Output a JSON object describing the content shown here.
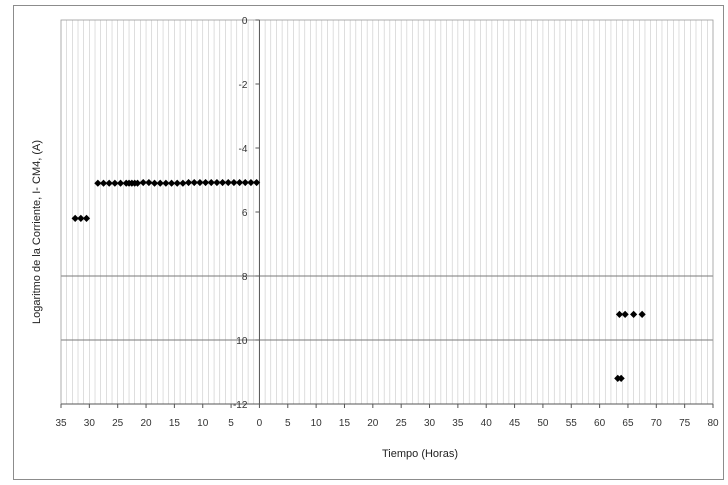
{
  "chart_data": {
    "type": "scatter",
    "title": "",
    "xlabel": "Tiempo (Horas)",
    "ylabel": "Logaritmo de la Corriente, I- CM4, (A)",
    "x_ticks": [
      {
        "value": -35,
        "label": "35"
      },
      {
        "value": -30,
        "label": "30"
      },
      {
        "value": -25,
        "label": "25"
      },
      {
        "value": -20,
        "label": "20"
      },
      {
        "value": -15,
        "label": "15"
      },
      {
        "value": -10,
        "label": "10"
      },
      {
        "value": -5,
        "label": "5"
      },
      {
        "value": 0,
        "label": "0"
      },
      {
        "value": 5,
        "label": "5"
      },
      {
        "value": 10,
        "label": "10"
      },
      {
        "value": 15,
        "label": "15"
      },
      {
        "value": 20,
        "label": "20"
      },
      {
        "value": 25,
        "label": "25"
      },
      {
        "value": 30,
        "label": "30"
      },
      {
        "value": 35,
        "label": "35"
      },
      {
        "value": 40,
        "label": "40"
      },
      {
        "value": 45,
        "label": "45"
      },
      {
        "value": 50,
        "label": "50"
      },
      {
        "value": 55,
        "label": "55"
      },
      {
        "value": 60,
        "label": "60"
      },
      {
        "value": 65,
        "label": "65"
      },
      {
        "value": 70,
        "label": "70"
      },
      {
        "value": 75,
        "label": "75"
      },
      {
        "value": 80,
        "label": "80"
      }
    ],
    "y_ticks": [
      {
        "value": 0,
        "label": "0"
      },
      {
        "value": -2,
        "label": "-2"
      },
      {
        "value": -4,
        "label": "-4"
      },
      {
        "value": -6,
        "label": "6"
      },
      {
        "value": -8,
        "label": "8"
      },
      {
        "value": -10,
        "label": "10"
      },
      {
        "value": -12,
        "label": "-12"
      }
    ],
    "xlim": [
      -35,
      80
    ],
    "ylim": [
      -12,
      0
    ],
    "grid": {
      "vertical_minor_step": 1,
      "horizontal_major": [
        -8,
        -10
      ]
    },
    "marker_color": "#000000",
    "series": [
      {
        "points": [
          {
            "x": -32.5,
            "y": -6.2
          },
          {
            "x": -31.5,
            "y": -6.2
          },
          {
            "x": -30.5,
            "y": -6.2
          },
          {
            "x": -28.5,
            "y": -5.1
          },
          {
            "x": -27.5,
            "y": -5.1
          },
          {
            "x": -26.5,
            "y": -5.1
          },
          {
            "x": -25.5,
            "y": -5.1
          },
          {
            "x": -24.5,
            "y": -5.1
          },
          {
            "x": -23.5,
            "y": -5.1
          },
          {
            "x": -23.0,
            "y": -5.1
          },
          {
            "x": -22.5,
            "y": -5.1
          },
          {
            "x": -22.0,
            "y": -5.1
          },
          {
            "x": -21.5,
            "y": -5.1
          },
          {
            "x": -20.5,
            "y": -5.08
          },
          {
            "x": -19.5,
            "y": -5.08
          },
          {
            "x": -18.5,
            "y": -5.1
          },
          {
            "x": -17.5,
            "y": -5.1
          },
          {
            "x": -16.5,
            "y": -5.1
          },
          {
            "x": -15.5,
            "y": -5.1
          },
          {
            "x": -14.5,
            "y": -5.1
          },
          {
            "x": -13.5,
            "y": -5.1
          },
          {
            "x": -12.5,
            "y": -5.08
          },
          {
            "x": -11.5,
            "y": -5.08
          },
          {
            "x": -10.5,
            "y": -5.08
          },
          {
            "x": -9.5,
            "y": -5.08
          },
          {
            "x": -8.5,
            "y": -5.08
          },
          {
            "x": -7.5,
            "y": -5.08
          },
          {
            "x": -6.5,
            "y": -5.08
          },
          {
            "x": -5.5,
            "y": -5.08
          },
          {
            "x": -4.5,
            "y": -5.08
          },
          {
            "x": -3.5,
            "y": -5.08
          },
          {
            "x": -2.5,
            "y": -5.08
          },
          {
            "x": -1.5,
            "y": -5.08
          },
          {
            "x": -0.5,
            "y": -5.08
          },
          {
            "x": 63.5,
            "y": -9.2
          },
          {
            "x": 64.5,
            "y": -9.2
          },
          {
            "x": 66.0,
            "y": -9.2
          },
          {
            "x": 67.5,
            "y": -9.2
          },
          {
            "x": 63.2,
            "y": -11.2
          },
          {
            "x": 63.8,
            "y": -11.2
          }
        ]
      }
    ]
  }
}
